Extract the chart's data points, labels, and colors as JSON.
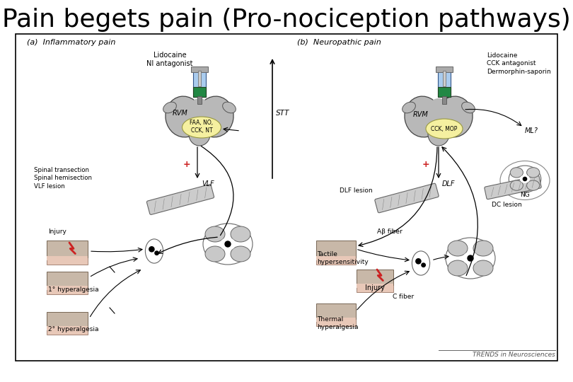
{
  "title": "Pain begets pain (Pro-nociception pathways)",
  "title_fontsize": 26,
  "background_color": "#ffffff",
  "panel_a_label": "(a)  Inflammatory pain",
  "panel_b_label": "(b)  Neuropathic pain",
  "stt_label": "STT",
  "vlf_label": "VLF",
  "dlf_label": "DLF",
  "rvm_label": "RVM",
  "faa_label": "FAA, NO,\nCCK, NT",
  "cck_label": "CCK, MOP",
  "lidocaine_a": "Lidocaine\nNI antagonist",
  "lidocaine_b": "Lidocaine\nCCK antagonist\nDermorphin-saporin",
  "spinal_label": "Spinal transection\nSpinal hemisection\nVLF lesion",
  "dlf_lesion": "DLF lesion",
  "dc_lesion": "DC lesion",
  "ml_label": "ML?",
  "ng_label": "NG",
  "injury_a": "Injury",
  "injury_b": "Injury",
  "hyperalgesia1": "1° hyperalgesia",
  "hyperalgesia2": "2° hyperalgesia",
  "ab_fiber": "Aβ fiber",
  "c_fiber": "C fiber",
  "tactile": "Tactile\nhypersensitivity",
  "thermal": "Thermal\nhyperalgesia",
  "trends_label": "TRENDS in Neurosciences",
  "brain_gray": "#b8b8b8",
  "brain_gray2": "#c8c8c8",
  "yellow_oval": "#f5f0a0",
  "skin_top": "#c8b8a8",
  "skin_pink": "#e8c8b8",
  "skin_bottom": "#d8a898",
  "plus_color": "#cc2222",
  "injury_red": "#cc2222",
  "syringe_body": "#aaccee",
  "syringe_green": "#228844",
  "arrow_color": "#000000"
}
